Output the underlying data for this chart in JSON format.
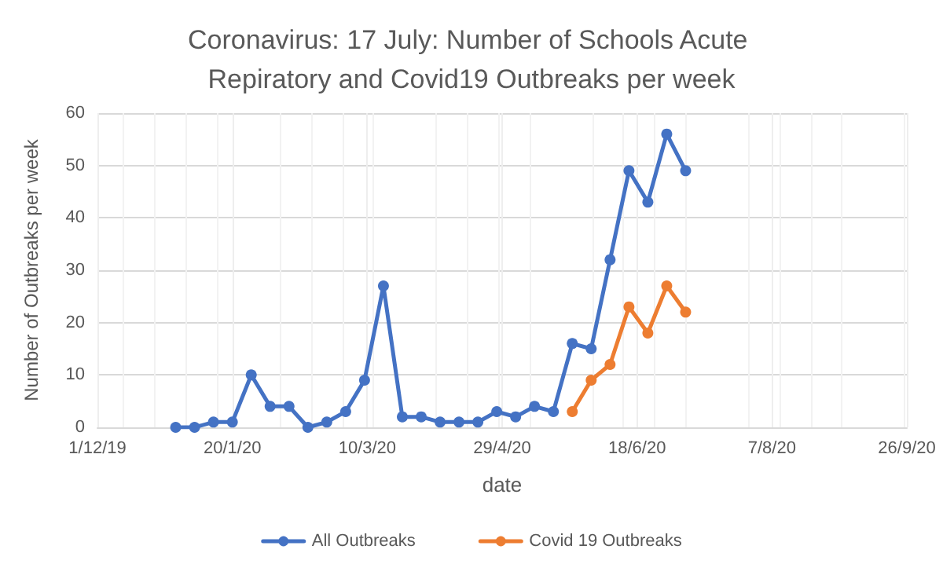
{
  "chart_data": {
    "type": "line",
    "title": "Coronavirus: 17 July: Number of Schools Acute Repiratory and Covid19 Outbreaks per week",
    "xlabel": "date",
    "ylabel": "Number of Outbreaks per week",
    "x": [
      "2019-12-30",
      "2020-01-06",
      "2020-01-13",
      "2020-01-20",
      "2020-01-27",
      "2020-02-03",
      "2020-02-10",
      "2020-02-17",
      "2020-02-24",
      "2020-03-02",
      "2020-03-09",
      "2020-03-16",
      "2020-03-23",
      "2020-03-30",
      "2020-04-06",
      "2020-04-13",
      "2020-04-20",
      "2020-04-27",
      "2020-05-04",
      "2020-05-11",
      "2020-05-18",
      "2020-05-25",
      "2020-06-01",
      "2020-06-08",
      "2020-06-15",
      "2020-06-22",
      "2020-06-29",
      "2020-07-06"
    ],
    "series": [
      {
        "name": "All Outbreaks",
        "color": "#4472c4",
        "values": [
          0,
          0,
          1,
          1,
          10,
          4,
          4,
          0,
          1,
          3,
          9,
          27,
          2,
          2,
          1,
          1,
          1,
          3,
          2,
          4,
          3,
          16,
          15,
          32,
          49,
          43,
          56,
          49
        ]
      },
      {
        "name": "Covid 19 Outbreaks",
        "color": "#ed7d31",
        "x": [
          "2020-05-25",
          "2020-06-01",
          "2020-06-08",
          "2020-06-15",
          "2020-06-22",
          "2020-06-29",
          "2020-07-06"
        ],
        "values": [
          3,
          9,
          12,
          23,
          18,
          27,
          22
        ]
      }
    ],
    "xlim": [
      "2019-12-01",
      "2020-09-26"
    ],
    "xticks": [
      {
        "value": "2019-12-01",
        "label": "1/12/19"
      },
      {
        "value": "2020-01-20",
        "label": "20/1/20"
      },
      {
        "value": "2020-03-10",
        "label": "10/3/20"
      },
      {
        "value": "2020-04-29",
        "label": "29/4/20"
      },
      {
        "value": "2020-06-18",
        "label": "18/6/20"
      },
      {
        "value": "2020-08-07",
        "label": "7/8/20"
      },
      {
        "value": "2020-09-26",
        "label": "26/9/20"
      }
    ],
    "ylim": [
      0,
      60
    ],
    "yticks": [
      0,
      10,
      20,
      30,
      40,
      50,
      60
    ],
    "grid": true,
    "legend": "bottom",
    "marker": "circle",
    "line_style": "solid"
  }
}
